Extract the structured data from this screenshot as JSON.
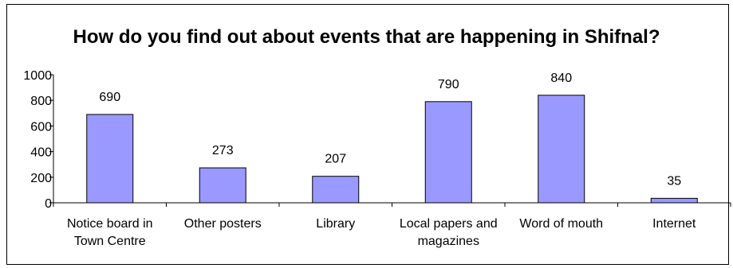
{
  "chart_data": {
    "type": "bar",
    "title": "How do you find out about events that are happening in Shifnal?",
    "categories": [
      [
        "Notice board in",
        "Town Centre"
      ],
      [
        "Other posters"
      ],
      [
        "Library"
      ],
      [
        "Local papers and",
        "magazines"
      ],
      [
        "Word of mouth"
      ],
      [
        "Internet"
      ]
    ],
    "values": [
      690,
      273,
      207,
      790,
      840,
      35
    ],
    "ylim": [
      0,
      1000
    ],
    "yticks": [
      0,
      200,
      400,
      600,
      800,
      1000
    ],
    "grid": false,
    "legend": false,
    "colors": {
      "bar_fill": "#9999ff",
      "bar_stroke": "#000000",
      "axis": "#000000"
    }
  }
}
